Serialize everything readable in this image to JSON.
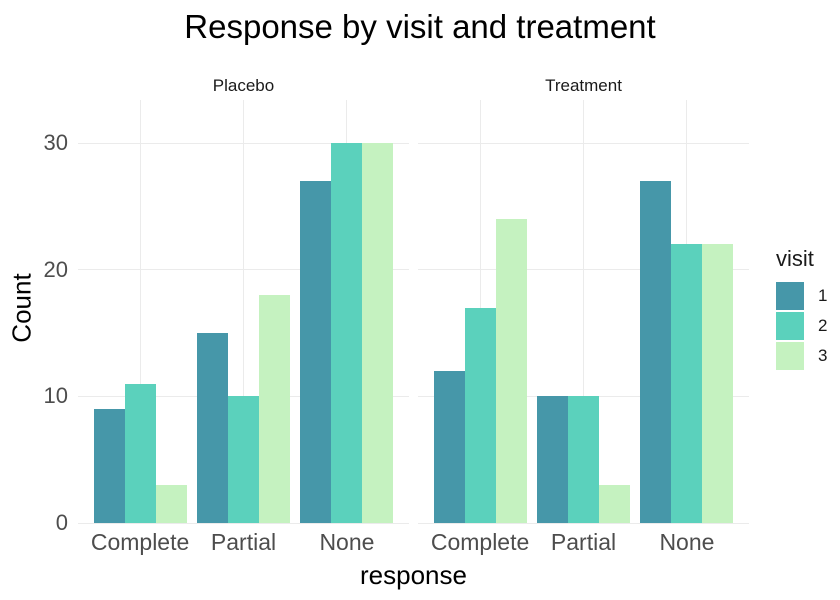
{
  "title": "Response by visit and treatment",
  "chart_data": {
    "type": "bar",
    "grouping": "grouped (dodged), faceted by treatment",
    "xlabel": "response",
    "ylabel": "Count",
    "yticks": [
      0,
      10,
      20,
      30
    ],
    "ylim": [
      0,
      30
    ],
    "y_render_max": 33.4,
    "grid": true,
    "categories": [
      "Complete",
      "Partial",
      "None"
    ],
    "facets": [
      {
        "label": "Placebo",
        "series": [
          {
            "name": "1",
            "values": [
              9,
              15,
              27
            ]
          },
          {
            "name": "2",
            "values": [
              11,
              10,
              30
            ]
          },
          {
            "name": "3",
            "values": [
              3,
              18,
              30
            ]
          }
        ]
      },
      {
        "label": "Treatment",
        "series": [
          {
            "name": "1",
            "values": [
              12,
              10,
              27
            ]
          },
          {
            "name": "2",
            "values": [
              17,
              10,
              22
            ]
          },
          {
            "name": "3",
            "values": [
              24,
              3,
              22
            ]
          }
        ]
      }
    ],
    "legend": {
      "title": "visit",
      "position": "right",
      "entries": [
        {
          "label": "1",
          "color": "#4697a9"
        },
        {
          "label": "2",
          "color": "#5bd1bc"
        },
        {
          "label": "3",
          "color": "#c5f2c0"
        }
      ]
    },
    "colors": {
      "gridline": "#ebebeb",
      "tick_text": "#4d4d4d",
      "title_text": "#000000",
      "facet_text": "#1a1a1a",
      "background": "#ffffff"
    }
  }
}
